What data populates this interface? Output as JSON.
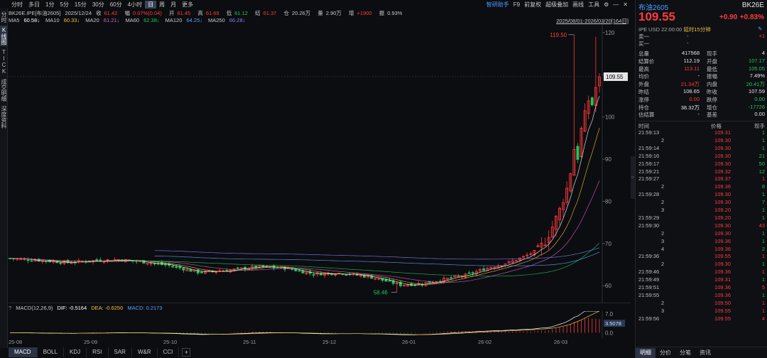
{
  "colors": {
    "up": "#ff3b3b",
    "down": "#21c45a",
    "accent": "#4a9eff",
    "bg": "#0c0d10"
  },
  "left_rail": [
    {
      "label": "分时",
      "active": false
    },
    {
      "label": "K线图",
      "active": true
    },
    {
      "label": "TICK",
      "active": false
    },
    {
      "label": "成交明细",
      "active": false
    },
    {
      "label": "深度资料",
      "active": false
    }
  ],
  "periods": [
    "分时",
    "多日",
    "1分",
    "5分",
    "15分",
    "30分",
    "60分",
    "4小时",
    "日",
    "周",
    "月",
    "更多"
  ],
  "active_period": "日",
  "tools": [
    "智研助手",
    "F9",
    "前复权",
    "超级叠加",
    "画线",
    "工具"
  ],
  "tool_icons": [
    "gear-icon",
    "minimize-icon",
    "close-icon"
  ],
  "info": {
    "symbol": "BK26E.IPE[布油2605]",
    "date": "2025/12/24",
    "close_label": "收",
    "close": "61.42",
    "chg_label": "幅",
    "chg": "0.07%(0.04)",
    "open_label": "开",
    "open": "61.45",
    "high_label": "高",
    "high": "61.69",
    "low_label": "低",
    "low": "61.12",
    "settle_label": "结",
    "settle": "61.37",
    "oi_label": "仓",
    "oi": "20.26万",
    "vol_label": "量",
    "vol": "2.90万",
    "inc_label": "增",
    "inc": "+1900",
    "amp_label": "振",
    "amp": "0.93%"
  },
  "ma": [
    {
      "label": "MA5",
      "value": "60.58↓",
      "color": "#ffffff"
    },
    {
      "label": "MA10",
      "value": "60.33↓",
      "color": "#f0c040"
    },
    {
      "label": "MA20",
      "value": "61.21↓",
      "color": "#d060d0"
    },
    {
      "label": "MA60",
      "value": "62.38↓",
      "color": "#21c45a"
    },
    {
      "label": "MA120",
      "value": "64.25↓",
      "color": "#5aa0ff"
    },
    {
      "label": "MA250",
      "value": "66.28↓",
      "color": "#8080ff"
    }
  ],
  "range_label": "2025/08/01-2026/03/20[164日]",
  "price_axis": [
    "120",
    "110",
    "100",
    "90",
    "80",
    "70",
    "60"
  ],
  "last_price_tag": "109.55",
  "high_marker": "119.50",
  "low_marker": "58.46",
  "macd": {
    "label": "MACD(12,26,9)",
    "dif": "DIF: -0.5164",
    "dea": "DEA: -0.6250",
    "macd": "MACD: 0.2173",
    "axis": [
      "7.0",
      "0.0"
    ],
    "tag": "3.5078"
  },
  "date_ticks": [
    "25-08",
    "25-09",
    "25-10",
    "25-11",
    "25-12",
    "26-01",
    "26-02",
    "26-03"
  ],
  "indicator_tabs": [
    "MACD",
    "BOLL",
    "KDJ",
    "RSI",
    "SAR",
    "W&R",
    "CCI"
  ],
  "active_indicator": "MACD",
  "add_tab_label": "+",
  "panel": {
    "title": "布油2605",
    "code": "BK26E",
    "price": "109.55",
    "change": "+0.90",
    "change_pct": "+0.83%",
    "meta": "IPE  USD  22:00:00",
    "badge": "延时15分钟",
    "orderbook": [
      {
        "label": "卖一",
        "mid": "-",
        "right": "+1"
      },
      {
        "label": "买一",
        "mid": "-",
        "right": ""
      }
    ],
    "stats": [
      {
        "k1": "总量",
        "v1": "417568",
        "c1": "white",
        "k2": "现手",
        "v2": "4",
        "c2": "white"
      },
      {
        "k1": "结算价",
        "v1": "112.19",
        "c1": "white",
        "k2": "开盘",
        "v2": "107.17",
        "c2": "green"
      },
      {
        "k1": "最高",
        "v1": "113.11",
        "c1": "red",
        "k2": "最低",
        "v2": "105.05",
        "c2": "green"
      },
      {
        "k1": "均价",
        "v1": "-",
        "c1": "white",
        "k2": "振幅",
        "v2": "7.49%",
        "c2": "white"
      },
      {
        "k1": "外盘",
        "v1": "21.34万",
        "c1": "red",
        "k2": "内盘",
        "v2": "20.41万",
        "c2": "green"
      },
      {
        "k1": "昨结",
        "v1": "108.65",
        "c1": "white",
        "k2": "昨收",
        "v2": "107.59",
        "c2": "white"
      },
      {
        "k1": "涨停",
        "v1": "0.00",
        "c1": "red",
        "k2": "跌停",
        "v2": "0.00",
        "c2": "green"
      },
      {
        "k1": "持仓",
        "v1": "38.32万",
        "c1": "white",
        "k2": "增仓",
        "v2": "-17726",
        "c2": "green"
      },
      {
        "k1": "估结算",
        "v1": "-",
        "c1": "white",
        "k2": "基差",
        "v2": "0.00",
        "c2": "white"
      }
    ],
    "tick_headers": [
      "时间",
      "价格",
      "现手"
    ],
    "ticks": [
      {
        "t": "21:59:13",
        "p": "109.31",
        "v": "1",
        "pc": "red",
        "vc": "green"
      },
      {
        "t": "2",
        "p": "109.30",
        "v": "1",
        "pc": "red",
        "vc": "green"
      },
      {
        "t": "21:59:14",
        "p": "109.30",
        "v": "1",
        "pc": "red",
        "vc": "green"
      },
      {
        "t": "21:59:16",
        "p": "109.30",
        "v": "21",
        "pc": "red",
        "vc": "green"
      },
      {
        "t": "21:59:17",
        "p": "109.30",
        "v": "50",
        "pc": "red",
        "vc": "green"
      },
      {
        "t": "21:59:21",
        "p": "109.32",
        "v": "12",
        "pc": "red",
        "vc": "green"
      },
      {
        "t": "21:59:27",
        "p": "109.37",
        "v": "1",
        "pc": "red",
        "vc": "red"
      },
      {
        "t": "2",
        "p": "109.36",
        "v": "8",
        "pc": "red",
        "vc": "green"
      },
      {
        "t": "21:59:28",
        "p": "109.30",
        "v": "1",
        "pc": "red",
        "vc": "green"
      },
      {
        "t": "2",
        "p": "109.30",
        "v": "7",
        "pc": "red",
        "vc": "green"
      },
      {
        "t": "3",
        "p": "109.20",
        "v": "1",
        "pc": "red",
        "vc": "green"
      },
      {
        "t": "21:59:29",
        "p": "109.20",
        "v": "1",
        "pc": "red",
        "vc": "green"
      },
      {
        "t": "21:59:30",
        "p": "109.30",
        "v": "43",
        "pc": "red",
        "vc": "red"
      },
      {
        "t": "2",
        "p": "109.30",
        "v": "1",
        "pc": "red",
        "vc": "green"
      },
      {
        "t": "3",
        "p": "109.36",
        "v": "1",
        "pc": "red",
        "vc": "green"
      },
      {
        "t": "4",
        "p": "109.36",
        "v": "2",
        "pc": "red",
        "vc": "green"
      },
      {
        "t": "21:59:36",
        "p": "109.55",
        "v": "1",
        "pc": "red",
        "vc": "red"
      },
      {
        "t": "2",
        "p": "109.30",
        "v": "1",
        "pc": "red",
        "vc": "green"
      },
      {
        "t": "21:59:46",
        "p": "109.36",
        "v": "1",
        "pc": "red",
        "vc": "red"
      },
      {
        "t": "21:59:49",
        "p": "109.31",
        "v": "1",
        "pc": "red",
        "vc": "green"
      },
      {
        "t": "21:59:51",
        "p": "109.36",
        "v": "5",
        "pc": "red",
        "vc": "red"
      },
      {
        "t": "21:59:55",
        "p": "109.36",
        "v": "1",
        "pc": "red",
        "vc": "green"
      },
      {
        "t": "2",
        "p": "109.50",
        "v": "1",
        "pc": "red",
        "vc": "red"
      },
      {
        "t": "3",
        "p": "109.55",
        "v": "1",
        "pc": "red",
        "vc": "red"
      },
      {
        "t": "21:59:56",
        "p": "109.55",
        "v": "4",
        "pc": "red",
        "vc": "red"
      }
    ],
    "tabs": [
      "明细",
      "分价",
      "分笔",
      "资讯"
    ],
    "active_tab": "明细"
  },
  "chart_data": {
    "type": "candlestick",
    "date_range": [
      "2025/08/01",
      "2026/03/20"
    ],
    "bars": 164,
    "ylim": [
      56,
      122
    ],
    "x_ticks": [
      "25-08",
      "25-09",
      "25-10",
      "25-11",
      "25-12",
      "26-01",
      "26-02",
      "26-03"
    ],
    "y_ticks": [
      60,
      70,
      80,
      90,
      100,
      110,
      120
    ],
    "period_high": 119.5,
    "period_low": 58.46,
    "last": 109.55,
    "close_path": [
      [
        0,
        66.5
      ],
      [
        8,
        66.0
      ],
      [
        16,
        65.5
      ],
      [
        22,
        65.9
      ],
      [
        30,
        66.2
      ],
      [
        38,
        65.5
      ],
      [
        44,
        64.8
      ],
      [
        52,
        63.2
      ],
      [
        60,
        63.6
      ],
      [
        68,
        64.5
      ],
      [
        76,
        64.2
      ],
      [
        84,
        62.8
      ],
      [
        92,
        63.0
      ],
      [
        100,
        62.0
      ],
      [
        108,
        60.2
      ],
      [
        114,
        60.5
      ],
      [
        120,
        61.5
      ],
      [
        126,
        62.5
      ],
      [
        132,
        64.2
      ],
      [
        138,
        65.5
      ],
      [
        142,
        66.8
      ],
      [
        146,
        68.5
      ],
      [
        148,
        70.5
      ],
      [
        150,
        74.0
      ],
      [
        152,
        78.0
      ],
      [
        154,
        83.0
      ],
      [
        155,
        87.0
      ],
      [
        156,
        92.5
      ],
      [
        157,
        90.5
      ],
      [
        158,
        97.0
      ],
      [
        159,
        100.5
      ],
      [
        160,
        104.0
      ],
      [
        161,
        103.0
      ],
      [
        162,
        107.0
      ],
      [
        163,
        109.55
      ]
    ],
    "ma_series": [
      {
        "name": "MA5",
        "color": "#ffffff"
      },
      {
        "name": "MA10",
        "color": "#f0c040"
      },
      {
        "name": "MA20",
        "color": "#d060d0"
      },
      {
        "name": "MA60",
        "color": "#21c45a"
      },
      {
        "name": "MA120",
        "color": "#5aa0ff"
      },
      {
        "name": "MA250",
        "color": "#8080ff"
      }
    ],
    "macd": {
      "dif": -0.5164,
      "dea": -0.625,
      "macd": 0.2173,
      "ylim": [
        -2,
        8
      ],
      "last_tag": 3.5078
    }
  }
}
